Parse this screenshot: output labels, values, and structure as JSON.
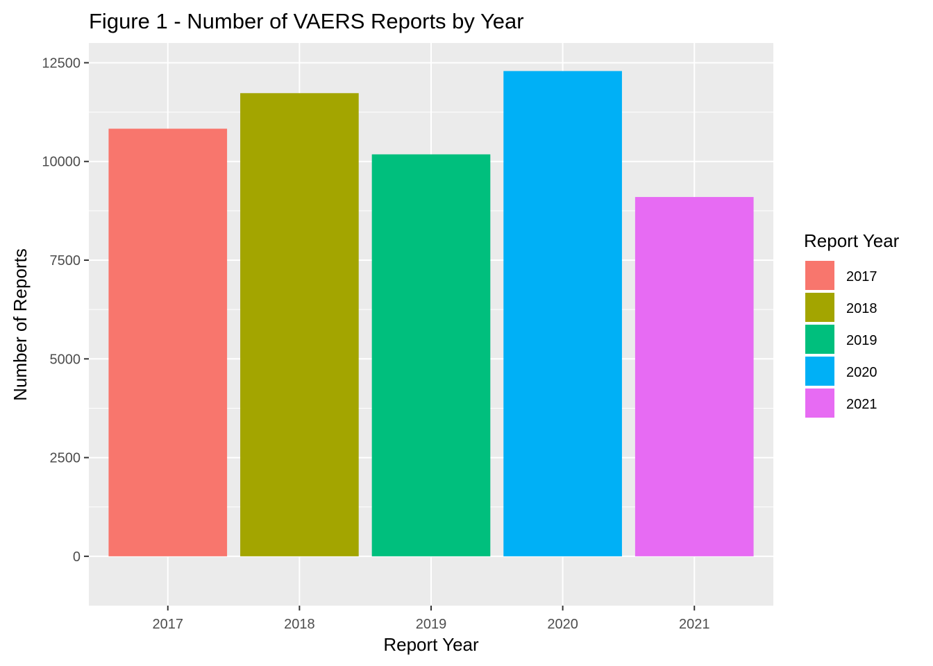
{
  "chart_data": {
    "type": "bar",
    "title": "Figure 1 - Number of VAERS Reports by Year",
    "xlabel": "Report Year",
    "ylabel": "Number of Reports",
    "categories": [
      "2017",
      "2018",
      "2019",
      "2020",
      "2021"
    ],
    "values": [
      10830,
      11730,
      10180,
      12290,
      9100
    ],
    "colors": [
      "#F8766D",
      "#A3A500",
      "#00BF7D",
      "#00B0F6",
      "#E76BF3"
    ],
    "ylim": [
      -1250,
      13000
    ],
    "yticks": [
      0,
      2500,
      5000,
      7500,
      10000,
      12500
    ],
    "ytick_labels": [
      "0",
      "2500",
      "5000",
      "7500",
      "10000",
      "12500"
    ],
    "grid": true,
    "panel_background": "#EBEBEB",
    "legend": {
      "title": "Report Year",
      "position": "right",
      "entries": [
        "2017",
        "2018",
        "2019",
        "2020",
        "2021"
      ]
    }
  }
}
